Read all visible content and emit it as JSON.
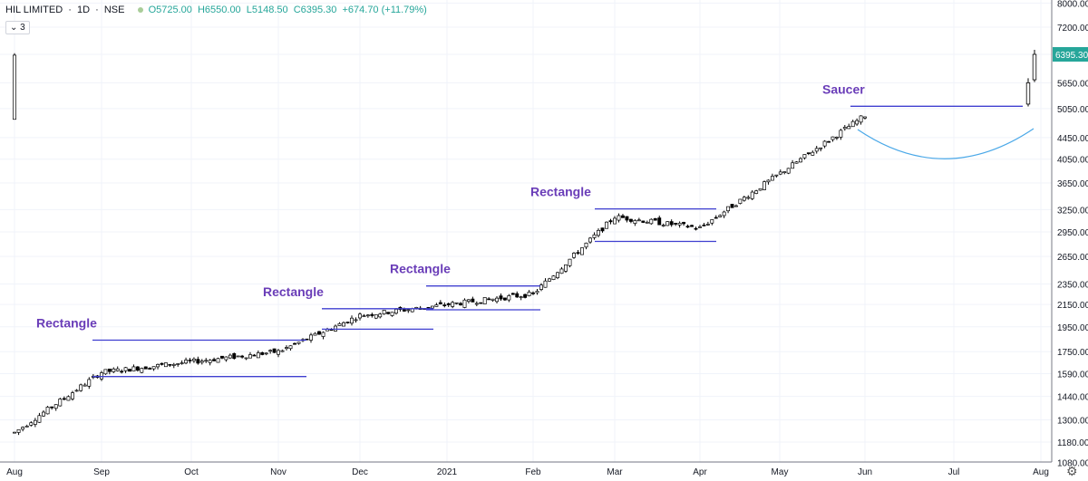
{
  "header": {
    "symbol": "HIL LIMITED",
    "interval": "1D",
    "exchange": "NSE",
    "open": "O5725.00",
    "high": "H6550.00",
    "low": "L5148.50",
    "close": "C6395.30",
    "change": "+674.70 (+11.79%)"
  },
  "indicator_toggle": {
    "label": "⌄ 3"
  },
  "settings_icon": "gear-icon",
  "colors": {
    "pattern_line": "#3f3fd0",
    "annotation": "#6a3db8",
    "saucer_curve": "#4aa8e8",
    "grid": "#f0f3fa",
    "price_badge": "#26a69a"
  },
  "chart_data": {
    "type": "candlestick",
    "title": "HIL LIMITED · 1D · NSE",
    "x_ticks": [
      "Aug",
      "Sep",
      "Oct",
      "Nov",
      "Dec",
      "2021",
      "Feb",
      "Mar",
      "Apr",
      "May",
      "Jun",
      "Jul",
      "Aug"
    ],
    "y_ticks": [
      "8000.00",
      "7200.00",
      "6395.30",
      "5650.00",
      "5050.00",
      "4450.00",
      "4050.00",
      "3650.00",
      "3250.00",
      "2950.00",
      "2650.00",
      "2350.00",
      "2150.00",
      "1950.00",
      "1750.00",
      "1590.00",
      "1440.00",
      "1300.00",
      "1180.00",
      "1080.00"
    ],
    "y_scale": "log",
    "ylim": [
      1000,
      8500
    ],
    "last_price": "6395.30",
    "grid": true,
    "annotations": [
      {
        "label": "Rectangle",
        "pattern": "rectangle",
        "support": 1570,
        "resistance": 1840
      },
      {
        "label": "Rectangle",
        "pattern": "rectangle",
        "support": 1930,
        "resistance": 2110
      },
      {
        "label": "Rectangle",
        "pattern": "rectangle",
        "support": 2100,
        "resistance": 2330
      },
      {
        "label": "Rectangle",
        "pattern": "rectangle",
        "support": 2830,
        "resistance": 3260
      },
      {
        "label": "Saucer",
        "pattern": "saucer",
        "resistance": 5100
      }
    ],
    "series": [
      {
        "from": "Aug",
        "to": "Sep",
        "open": 1230,
        "close": 1600
      },
      {
        "from": "Sep",
        "to": "Nov",
        "open": 1600,
        "close": 1750
      },
      {
        "from": "Nov",
        "to": "Dec",
        "open": 1750,
        "close": 2050
      },
      {
        "from": "Dec",
        "to": "Feb",
        "open": 2050,
        "close": 2250
      },
      {
        "from": "Feb",
        "to": "Mar",
        "open": 2250,
        "close": 3150
      },
      {
        "from": "Mar",
        "to": "Apr",
        "open": 3150,
        "close": 3000
      },
      {
        "from": "Apr",
        "to": "Jun",
        "open": 3000,
        "close": 4900
      },
      {
        "from": "Jun",
        "to": "Aug",
        "open": 4900,
        "close": 6395.3
      }
    ]
  }
}
